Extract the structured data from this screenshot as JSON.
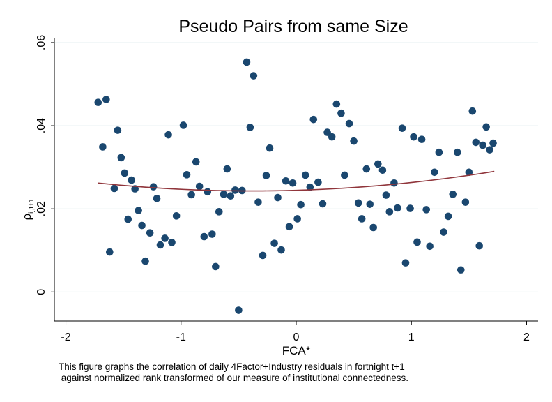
{
  "chart_data": {
    "type": "scatter",
    "title": "Pseudo Pairs from same Size",
    "xlabel": "FCA*",
    "ylabel_main": "ρ",
    "ylabel_sub": "ij,t+1",
    "xlim": [
      -2.1,
      2.1
    ],
    "ylim": [
      -0.007,
      0.061
    ],
    "xticks": [
      -2,
      -1,
      0,
      1,
      2
    ],
    "xtick_labels": [
      "-2",
      "-1",
      "0",
      "1",
      "2"
    ],
    "yticks": [
      0,
      0.02,
      0.04,
      0.06
    ],
    "ytick_labels": [
      "0",
      ".02",
      ".04",
      ".06"
    ],
    "grid": true,
    "legend": "none",
    "colors": {
      "point": "#1a476f",
      "fit": "#90353b",
      "grid": "#eaf2f3"
    },
    "fit_curve": {
      "type": "quadratic",
      "x": [
        -1.72,
        -0.4,
        1.72
      ],
      "y": [
        0.0262,
        0.0243,
        0.029
      ]
    },
    "points": [
      [
        -1.72,
        0.0456
      ],
      [
        -1.68,
        0.0349
      ],
      [
        -1.65,
        0.0463
      ],
      [
        -1.62,
        0.0096
      ],
      [
        -1.58,
        0.0249
      ],
      [
        -1.55,
        0.0389
      ],
      [
        -1.52,
        0.0323
      ],
      [
        -1.49,
        0.0286
      ],
      [
        -1.46,
        0.0175
      ],
      [
        -1.43,
        0.0269
      ],
      [
        -1.4,
        0.0248
      ],
      [
        -1.37,
        0.0196
      ],
      [
        -1.34,
        0.016
      ],
      [
        -1.31,
        0.0074
      ],
      [
        -1.27,
        0.0142
      ],
      [
        -1.24,
        0.0253
      ],
      [
        -1.21,
        0.0225
      ],
      [
        -1.18,
        0.0113
      ],
      [
        -1.14,
        0.0129
      ],
      [
        -1.11,
        0.0378
      ],
      [
        -1.08,
        0.0119
      ],
      [
        -1.04,
        0.0183
      ],
      [
        -0.98,
        0.0401
      ],
      [
        -0.95,
        0.0282
      ],
      [
        -0.91,
        0.0234
      ],
      [
        -0.87,
        0.0313
      ],
      [
        -0.84,
        0.0254
      ],
      [
        -0.8,
        0.0133
      ],
      [
        -0.77,
        0.0241
      ],
      [
        -0.73,
        0.0139
      ],
      [
        -0.7,
        0.0061
      ],
      [
        -0.67,
        0.0193
      ],
      [
        -0.63,
        0.0235
      ],
      [
        -0.6,
        0.0296
      ],
      [
        -0.57,
        0.0231
      ],
      [
        -0.53,
        0.0245
      ],
      [
        -0.5,
        -0.0044
      ],
      [
        -0.47,
        0.0244
      ],
      [
        -0.43,
        0.0553
      ],
      [
        -0.4,
        0.0396
      ],
      [
        -0.37,
        0.052
      ],
      [
        -0.33,
        0.0216
      ],
      [
        -0.29,
        0.0088
      ],
      [
        -0.26,
        0.028
      ],
      [
        -0.23,
        0.0346
      ],
      [
        -0.19,
        0.0117
      ],
      [
        -0.16,
        0.0227
      ],
      [
        -0.13,
        0.0101
      ],
      [
        -0.09,
        0.0267
      ],
      [
        -0.06,
        0.0157
      ],
      [
        -0.03,
        0.0262
      ],
      [
        0.01,
        0.0176
      ],
      [
        0.04,
        0.021
      ],
      [
        0.08,
        0.0281
      ],
      [
        0.12,
        0.0252
      ],
      [
        0.15,
        0.0415
      ],
      [
        0.19,
        0.0264
      ],
      [
        0.23,
        0.0212
      ],
      [
        0.27,
        0.0384
      ],
      [
        0.31,
        0.0373
      ],
      [
        0.35,
        0.0452
      ],
      [
        0.39,
        0.043
      ],
      [
        0.42,
        0.0281
      ],
      [
        0.46,
        0.0405
      ],
      [
        0.5,
        0.0363
      ],
      [
        0.54,
        0.0214
      ],
      [
        0.57,
        0.0176
      ],
      [
        0.61,
        0.0296
      ],
      [
        0.64,
        0.0211
      ],
      [
        0.67,
        0.0155
      ],
      [
        0.71,
        0.0308
      ],
      [
        0.75,
        0.0293
      ],
      [
        0.78,
        0.0233
      ],
      [
        0.81,
        0.0193
      ],
      [
        0.85,
        0.0262
      ],
      [
        0.88,
        0.0202
      ],
      [
        0.92,
        0.0394
      ],
      [
        0.95,
        0.007
      ],
      [
        0.99,
        0.0201
      ],
      [
        1.02,
        0.0373
      ],
      [
        1.05,
        0.012
      ],
      [
        1.09,
        0.0367
      ],
      [
        1.13,
        0.0198
      ],
      [
        1.16,
        0.011
      ],
      [
        1.2,
        0.0288
      ],
      [
        1.24,
        0.0336
      ],
      [
        1.28,
        0.0144
      ],
      [
        1.32,
        0.0182
      ],
      [
        1.36,
        0.0235
      ],
      [
        1.4,
        0.0336
      ],
      [
        1.43,
        0.0053
      ],
      [
        1.47,
        0.0216
      ],
      [
        1.5,
        0.0288
      ],
      [
        1.53,
        0.0435
      ],
      [
        1.56,
        0.036
      ],
      [
        1.59,
        0.0111
      ],
      [
        1.62,
        0.0353
      ],
      [
        1.65,
        0.0397
      ],
      [
        1.68,
        0.0342
      ],
      [
        1.71,
        0.0358
      ]
    ]
  },
  "caption": {
    "line1": "This figure graphs the correlation of daily 4Factor+Industry residuals in fortnight t+1",
    "line2": " against normalized rank transformed of our measure of institutional connectedness."
  }
}
